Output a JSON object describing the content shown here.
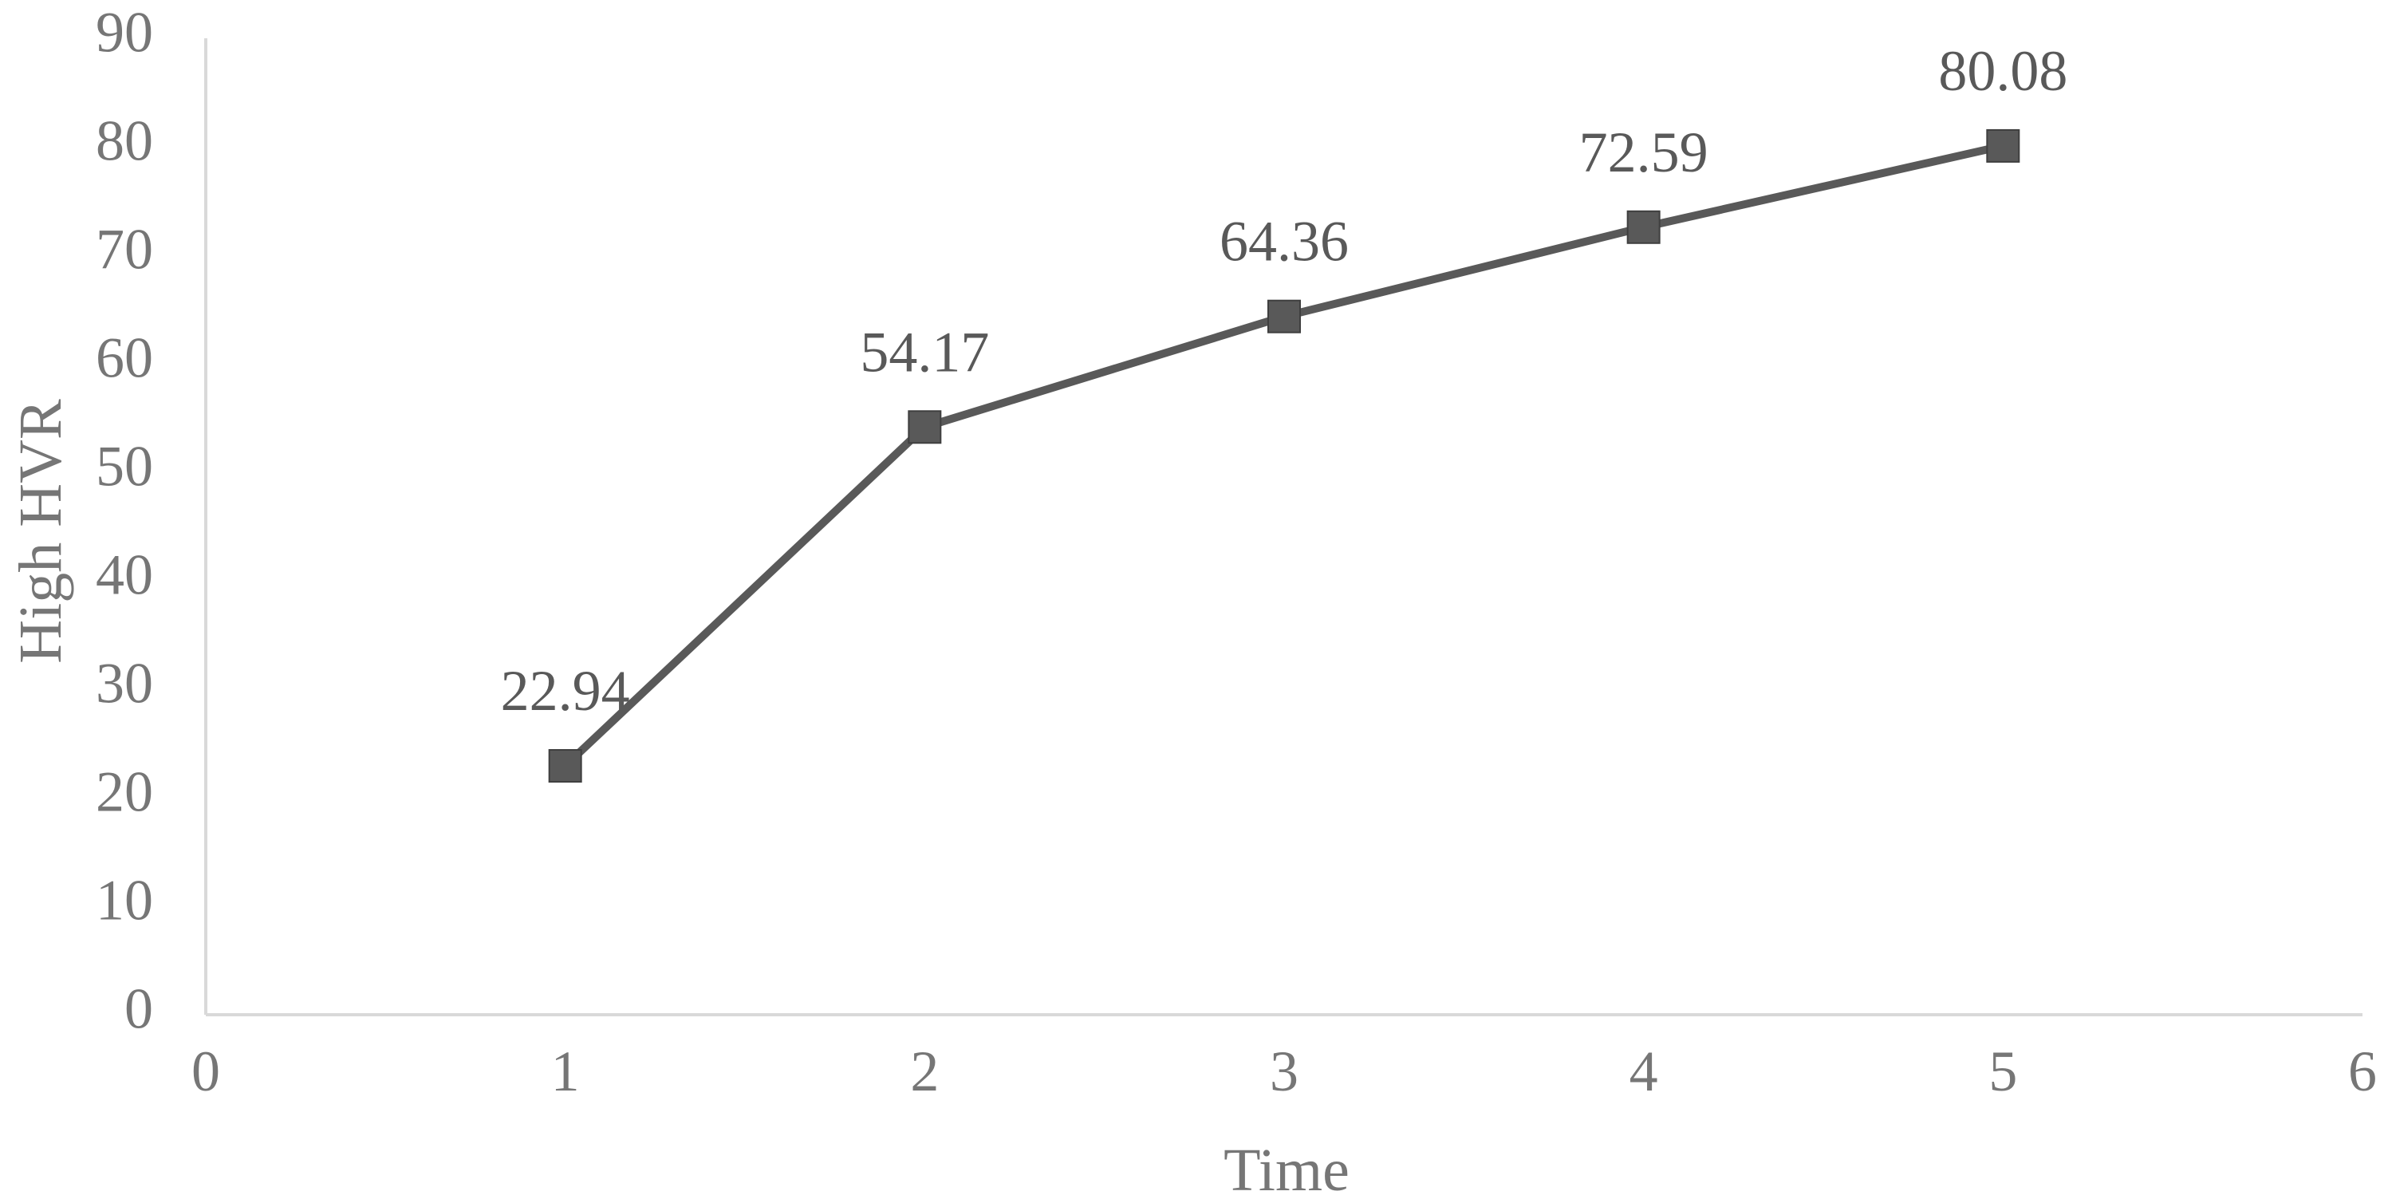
{
  "chart_data": {
    "type": "line",
    "title": "",
    "xlabel": "Time",
    "ylabel": "High HVR",
    "xlim": [
      0,
      6
    ],
    "ylim": [
      0,
      90
    ],
    "x_ticks": [
      "0",
      "1",
      "2",
      "3",
      "4",
      "5",
      "6"
    ],
    "y_ticks": [
      "0",
      "10",
      "20",
      "30",
      "40",
      "50",
      "60",
      "70",
      "80",
      "90"
    ],
    "grid": false,
    "legend": "none",
    "series": [
      {
        "x": [
          1,
          2,
          3,
          4,
          5
        ],
        "values": [
          22.94,
          54.17,
          64.36,
          72.59,
          80.08
        ],
        "data_labels": [
          "22.94",
          "54.17",
          "64.36",
          "72.59",
          "80.08"
        ],
        "marker": "square",
        "color": "#595959"
      }
    ],
    "colors": {
      "axis": "#d9d9d9",
      "text": "#767676",
      "series": "#595959"
    }
  }
}
